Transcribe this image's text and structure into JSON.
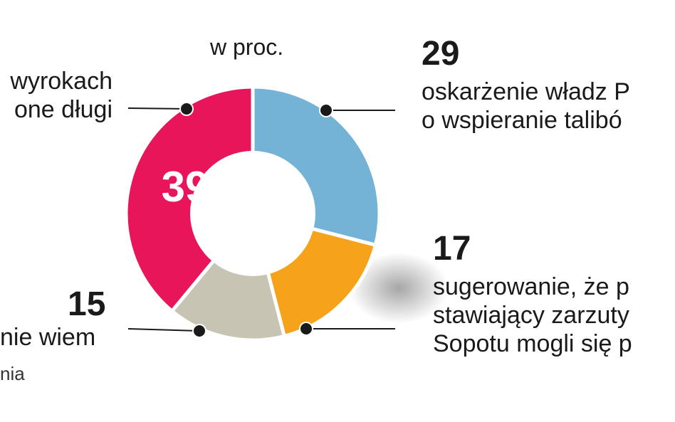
{
  "chart_data": {
    "type": "pie",
    "unit_label": "w proc.",
    "categories": [
      "oskarżenie władz P... o wspieranie talibó...",
      "sugerowanie, że p... stawiający zarzuty... Sopotu mogli się p...",
      "nie wiem",
      "...wyrokach ...one długi"
    ],
    "values": [
      29,
      17,
      15,
      39
    ],
    "slices": [
      {
        "value": 29,
        "value_label": "29",
        "label_lines": [
          "oskarżenie władz P",
          "o wspieranie talibó"
        ],
        "color": "#74b3d6"
      },
      {
        "value": 17,
        "value_label": "17",
        "label_lines": [
          "sugerowanie, że p",
          "stawiający zarzuty",
          "Sopotu mogli się p"
        ],
        "color": "#f7a21b"
      },
      {
        "value": 15,
        "value_label": "15",
        "label_lines": [
          "nie wiem"
        ],
        "color": "#c8c4b4"
      },
      {
        "value": 39,
        "value_label": "39",
        "label_lines": [
          "wyrokach",
          "one długi"
        ],
        "color": "#e8155a"
      }
    ],
    "source_fragment": "nia"
  }
}
